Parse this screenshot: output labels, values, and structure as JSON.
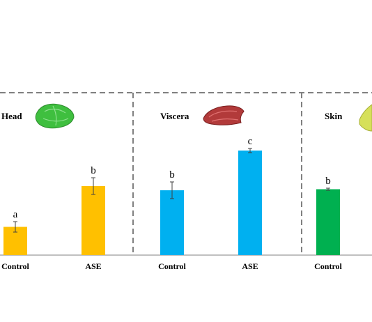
{
  "chart_data": [
    {
      "type": "bar",
      "panel_label": "Head",
      "categories": [
        "Control",
        "ASE"
      ],
      "values": [
        0.27,
        0.66
      ],
      "errors": [
        0.05,
        0.08
      ],
      "significance_letters": [
        "a",
        "b"
      ],
      "bar_color": "#FFC000",
      "icon": "fish-head-icon",
      "icon_color": "#3FBF3F"
    },
    {
      "type": "bar",
      "panel_label": "Viscera",
      "categories": [
        "Control",
        "ASE"
      ],
      "values": [
        0.62,
        1.0
      ],
      "errors": [
        0.08,
        0.02
      ],
      "significance_letters": [
        "b",
        "c"
      ],
      "bar_color": "#00B0F0",
      "icon": "fish-viscera-icon",
      "icon_color": "#B23A3A"
    },
    {
      "type": "bar",
      "panel_label": "Skin",
      "categories": [
        "Control"
      ],
      "values": [
        0.63
      ],
      "errors": [
        0.01
      ],
      "significance_letters": [
        "b"
      ],
      "bar_color": "#00B050",
      "icon": "fish-skin-icon",
      "icon_color": "#D6E05A"
    }
  ]
}
